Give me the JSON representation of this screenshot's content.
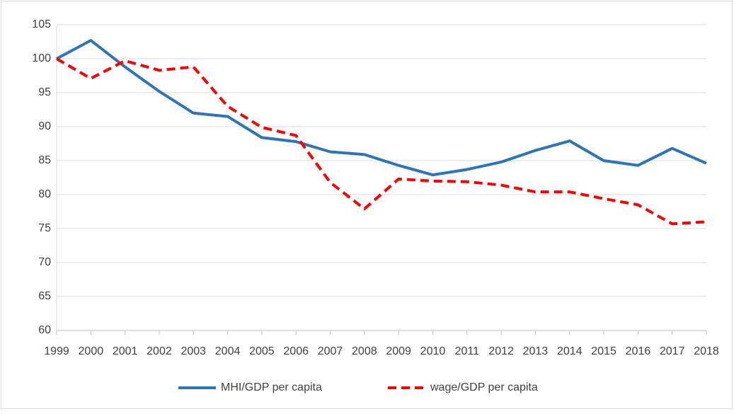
{
  "chart_data": {
    "type": "line",
    "categories": [
      "1999",
      "2000",
      "2001",
      "2002",
      "2003",
      "2004",
      "2005",
      "2006",
      "2007",
      "2008",
      "2009",
      "2010",
      "2011",
      "2012",
      "2013",
      "2014",
      "2015",
      "2016",
      "2017",
      "2018"
    ],
    "series": [
      {
        "name": "MHI/GDP per capita",
        "color": "#2e75b6",
        "dashed": false,
        "values": [
          100,
          102.7,
          98.8,
          95.2,
          92.0,
          91.5,
          88.4,
          87.8,
          86.3,
          85.9,
          84.3,
          82.9,
          83.7,
          84.8,
          86.5,
          87.9,
          85.0,
          84.3,
          86.8,
          84.6
        ]
      },
      {
        "name": "wage/GDP per capita",
        "color": "#ff0000",
        "dashed": true,
        "values": [
          100,
          97.1,
          99.7,
          98.3,
          98.8,
          93.0,
          89.9,
          88.7,
          81.8,
          77.9,
          82.3,
          82.0,
          81.9,
          81.4,
          80.4,
          80.4,
          79.4,
          78.5,
          75.7,
          76.0
        ]
      }
    ],
    "ylim": [
      60,
      105
    ],
    "yticks": [
      60,
      65,
      70,
      75,
      80,
      85,
      90,
      95,
      100,
      105
    ],
    "grid": true,
    "legend": "bottom"
  }
}
